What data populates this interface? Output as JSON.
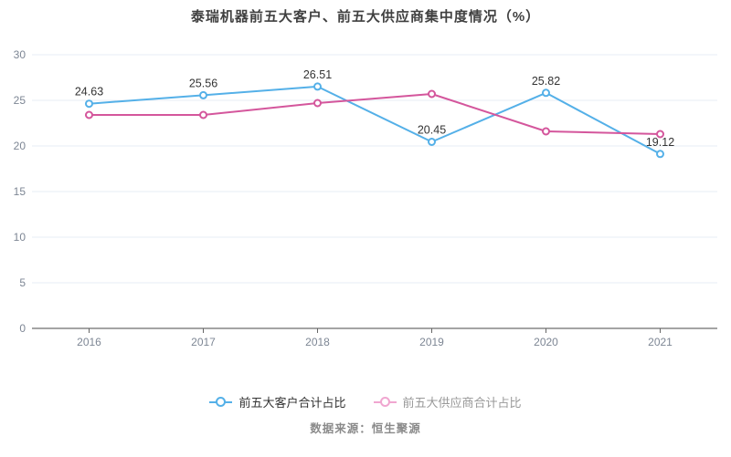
{
  "title": "泰瑞机器前五大客户、前五大供应商集中度情况（%）",
  "source": "数据来源：恒生聚源",
  "chart_data": {
    "type": "line",
    "categories": [
      "2016",
      "2017",
      "2018",
      "2019",
      "2020",
      "2021"
    ],
    "series": [
      {
        "name": "前五大客户合计占比",
        "color": "#54b0e8",
        "values": [
          24.63,
          25.56,
          26.51,
          20.45,
          25.82,
          19.12
        ],
        "labels": [
          "24.63",
          "25.56",
          "26.51",
          "20.45",
          "25.82",
          "19.12"
        ]
      },
      {
        "name": "前五大供应商合计占比",
        "color": "#d4569c",
        "values": [
          23.4,
          23.4,
          24.7,
          25.7,
          21.6,
          21.3
        ],
        "labels": []
      }
    ],
    "xlabel": "",
    "ylabel": "",
    "ylim": [
      0,
      30
    ],
    "y_ticks": [
      0,
      5,
      10,
      15,
      20,
      25,
      30
    ],
    "grid": true,
    "legend_position": "bottom"
  },
  "legend": {
    "items": [
      {
        "label": "前五大客户合计占比",
        "marker_color": "#54b0e8",
        "text_color": "#333333"
      },
      {
        "label": "前五大供应商合计占比",
        "marker_color": "#f0a6d0",
        "text_color": "#999999"
      }
    ]
  },
  "style": {
    "axis_line_color": "#4a4a4a",
    "tick_color": "#666666",
    "tick_label_color": "#7d8694",
    "grid_color": "#e7edf5",
    "data_label_color": "#333333",
    "marker_fill": "#ffffff"
  }
}
